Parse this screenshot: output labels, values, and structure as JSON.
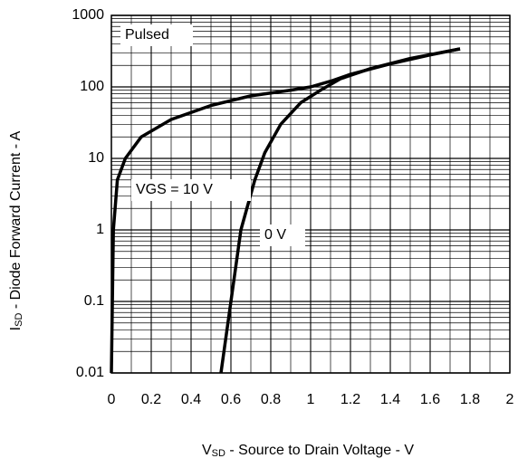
{
  "chart_data": {
    "type": "line",
    "x_label": [
      "V",
      "SD",
      " - Source to Drain Voltage - V"
    ],
    "y_label": [
      "I",
      "SD",
      " - Diode Forward Current - A"
    ],
    "annotation": "Pulsed",
    "log_y": true,
    "grid": true,
    "xlim": [
      0,
      2
    ],
    "xticks": [
      0,
      0.2,
      0.4,
      0.6,
      0.8,
      1,
      1.2,
      1.4,
      1.6,
      1.8,
      2
    ],
    "x_minor_ticks": [
      0.1,
      0.3,
      0.5,
      0.7,
      0.9,
      1.1,
      1.3,
      1.5,
      1.7,
      1.9
    ],
    "ylim": [
      0.01,
      1000
    ],
    "yticks": [
      0.01,
      0.1,
      1,
      10,
      100,
      1000
    ],
    "y_minor_ticks": [
      0.02,
      0.03,
      0.04,
      0.05,
      0.06,
      0.07,
      0.08,
      0.09,
      0.2,
      0.3,
      0.4,
      0.5,
      0.6,
      0.7,
      0.8,
      0.9,
      2,
      3,
      4,
      5,
      6,
      7,
      8,
      9,
      20,
      30,
      40,
      50,
      60,
      70,
      80,
      90,
      200,
      300,
      400,
      500,
      600,
      700,
      800,
      900
    ],
    "series": [
      {
        "name": "VGS = 10 V",
        "color": "#000000",
        "x": [
          0,
          0.005,
          0.01,
          0.03,
          0.07,
          0.15,
          0.3,
          0.5,
          0.7,
          0.9,
          1.0,
          1.1,
          1.2,
          1.4,
          1.6,
          1.75
        ],
        "values": [
          0.01,
          0.1,
          1,
          5,
          10,
          20,
          35,
          55,
          75,
          90,
          100,
          120,
          150,
          210,
          280,
          340
        ]
      },
      {
        "name": "0 V",
        "color": "#000000",
        "x": [
          0.55,
          0.6,
          0.65,
          0.72,
          0.77,
          0.85,
          0.95,
          1.05,
          1.15,
          1.3,
          1.5,
          1.75
        ],
        "values": [
          0.01,
          0.1,
          1,
          5,
          12,
          30,
          60,
          90,
          130,
          180,
          250,
          340
        ]
      }
    ]
  }
}
